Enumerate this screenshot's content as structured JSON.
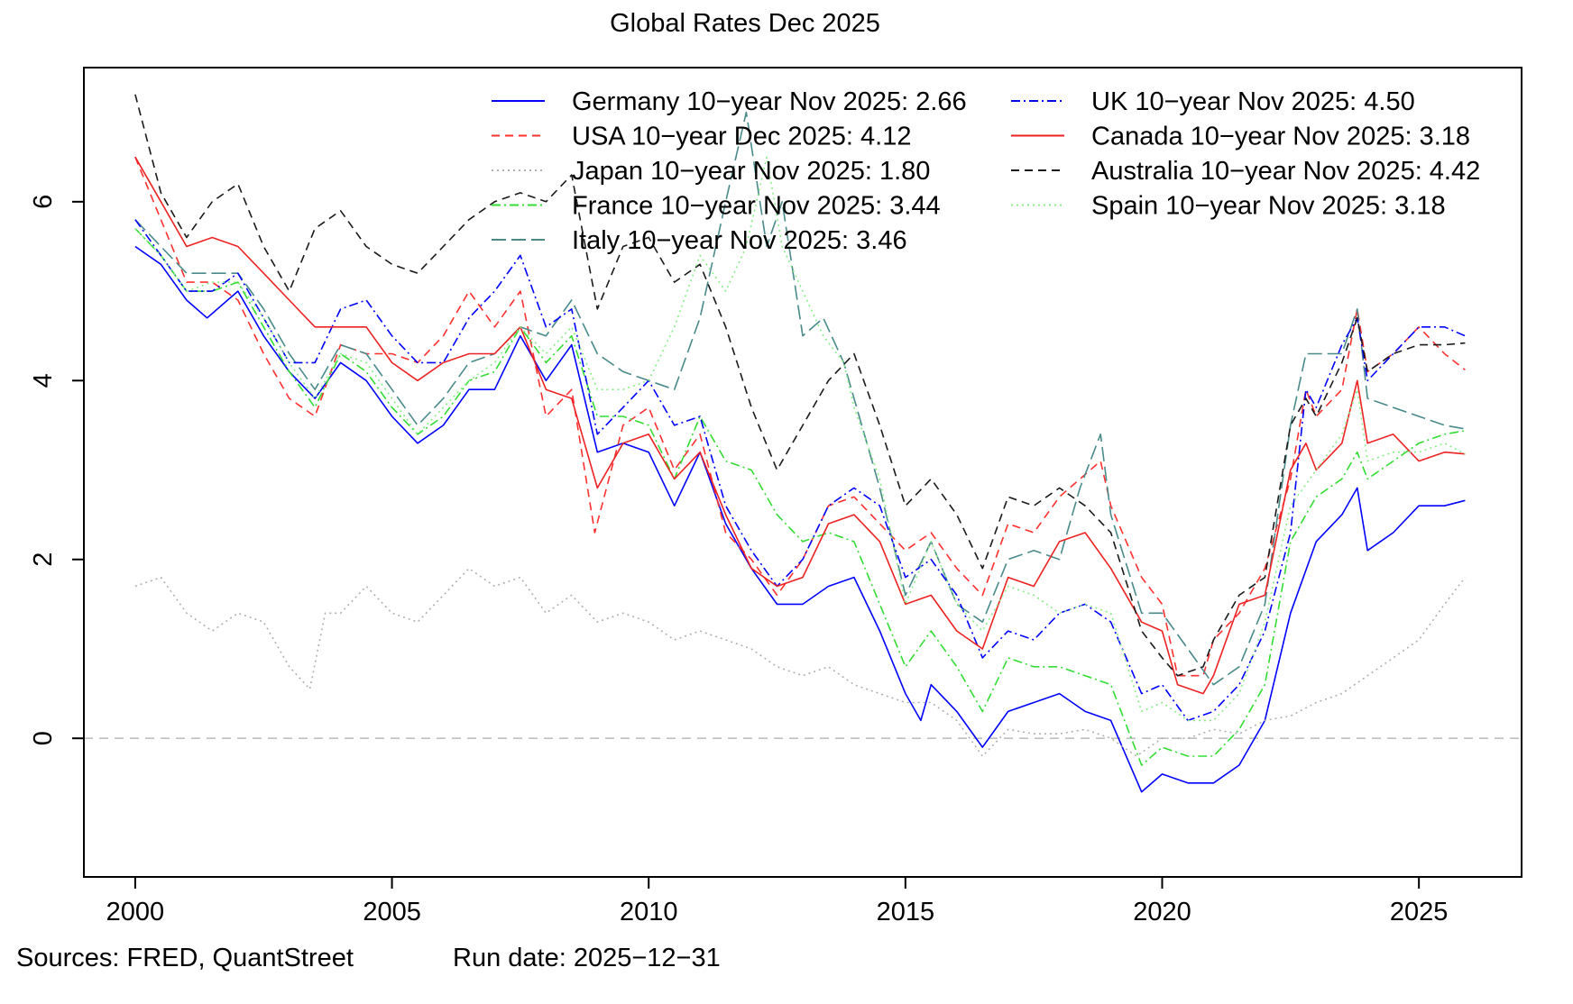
{
  "chart_data": {
    "type": "line",
    "title": "Global Rates Dec 2025",
    "xlabel": "",
    "ylabel": "",
    "xlim": [
      1999.0,
      2027.0
    ],
    "ylim": [
      -1.55,
      7.5
    ],
    "x_ticks": [
      "2000",
      "2005",
      "2010",
      "2015",
      "2020",
      "2025"
    ],
    "y_ticks": [
      "0",
      "2",
      "4",
      "6"
    ],
    "grid": false,
    "reference_line": {
      "y": 0,
      "style": "dashed",
      "color": "#bfbfbf"
    },
    "legend_position": "top-right",
    "series": [
      {
        "name": "Germany 10−year Nov 2025: 2.66",
        "color": "#0000ff",
        "dash": "solid",
        "width": 1.6,
        "x": [
          2000.0,
          2000.5,
          2001.0,
          2001.4,
          2002.0,
          2002.5,
          2003.0,
          2003.5,
          2004.0,
          2004.5,
          2005.0,
          2005.5,
          2006.0,
          2006.5,
          2007.0,
          2007.5,
          2008.0,
          2008.5,
          2009.0,
          2009.5,
          2010.0,
          2010.5,
          2011.0,
          2011.5,
          2012.0,
          2012.5,
          2013.0,
          2013.5,
          2014.0,
          2014.5,
          2015.0,
          2015.3,
          2015.5,
          2016.0,
          2016.5,
          2017.0,
          2017.5,
          2018.0,
          2018.5,
          2019.0,
          2019.6,
          2020.0,
          2020.5,
          2021.0,
          2021.5,
          2022.0,
          2022.5,
          2023.0,
          2023.5,
          2023.8,
          2024.0,
          2024.5,
          2025.0,
          2025.5,
          2025.9
        ],
        "y": [
          5.5,
          5.3,
          4.9,
          4.7,
          5.0,
          4.5,
          4.1,
          3.8,
          4.2,
          4.0,
          3.6,
          3.3,
          3.5,
          3.9,
          3.9,
          4.5,
          4.0,
          4.4,
          3.2,
          3.3,
          3.2,
          2.6,
          3.2,
          2.4,
          1.9,
          1.5,
          1.5,
          1.7,
          1.8,
          1.2,
          0.5,
          0.2,
          0.6,
          0.3,
          -0.1,
          0.3,
          0.4,
          0.5,
          0.3,
          0.2,
          -0.6,
          -0.4,
          -0.5,
          -0.5,
          -0.3,
          0.2,
          1.4,
          2.2,
          2.5,
          2.8,
          2.1,
          2.3,
          2.6,
          2.6,
          2.66
        ]
      },
      {
        "name": "USA 10−year Dec 2025: 4.12",
        "color": "#ff3030",
        "dash": "dashed",
        "width": 1.6,
        "x": [
          2000.0,
          2000.5,
          2001.0,
          2001.5,
          2002.0,
          2002.5,
          2003.0,
          2003.5,
          2004.0,
          2004.5,
          2005.0,
          2005.5,
          2006.0,
          2006.5,
          2007.0,
          2007.5,
          2008.0,
          2008.5,
          2008.95,
          2009.5,
          2010.0,
          2010.5,
          2011.0,
          2011.5,
          2012.0,
          2012.5,
          2013.0,
          2013.5,
          2014.0,
          2014.5,
          2015.0,
          2015.5,
          2016.0,
          2016.5,
          2017.0,
          2017.5,
          2018.0,
          2018.8,
          2019.0,
          2019.6,
          2020.0,
          2020.3,
          2020.8,
          2021.0,
          2021.5,
          2022.0,
          2022.5,
          2022.8,
          2023.0,
          2023.5,
          2023.8,
          2024.0,
          2024.5,
          2025.0,
          2025.5,
          2025.9
        ],
        "y": [
          6.5,
          5.8,
          5.1,
          5.1,
          4.9,
          4.3,
          3.8,
          3.6,
          4.4,
          4.3,
          4.3,
          4.2,
          4.5,
          5.0,
          4.6,
          5.0,
          3.6,
          3.9,
          2.3,
          3.5,
          3.7,
          3.0,
          3.4,
          2.3,
          2.0,
          1.6,
          2.0,
          2.6,
          2.7,
          2.4,
          2.1,
          2.3,
          1.9,
          1.6,
          2.4,
          2.3,
          2.7,
          3.1,
          2.6,
          1.8,
          1.5,
          0.7,
          0.7,
          1.1,
          1.4,
          1.9,
          2.9,
          3.9,
          3.6,
          3.9,
          4.8,
          4.1,
          4.3,
          4.6,
          4.3,
          4.12
        ]
      },
      {
        "name": "Japan 10−year Nov 2025: 1.80",
        "color": "#b0b0b0",
        "dash": "dotted",
        "width": 1.6,
        "x": [
          2000.0,
          2000.5,
          2001.0,
          2001.5,
          2002.0,
          2002.5,
          2003.0,
          2003.4,
          2003.7,
          2004.0,
          2004.5,
          2005.0,
          2005.5,
          2006.0,
          2006.5,
          2007.0,
          2007.5,
          2008.0,
          2008.5,
          2009.0,
          2009.5,
          2010.0,
          2010.5,
          2011.0,
          2011.5,
          2012.0,
          2012.5,
          2013.0,
          2013.5,
          2014.0,
          2014.5,
          2015.0,
          2015.5,
          2016.0,
          2016.5,
          2017.0,
          2017.5,
          2018.0,
          2018.5,
          2019.0,
          2019.5,
          2020.0,
          2020.5,
          2021.0,
          2021.5,
          2022.0,
          2022.5,
          2023.0,
          2023.5,
          2024.0,
          2024.5,
          2025.0,
          2025.5,
          2025.9
        ],
        "y": [
          1.7,
          1.8,
          1.4,
          1.2,
          1.4,
          1.3,
          0.8,
          0.55,
          1.4,
          1.4,
          1.7,
          1.4,
          1.3,
          1.6,
          1.9,
          1.7,
          1.8,
          1.4,
          1.6,
          1.3,
          1.4,
          1.3,
          1.1,
          1.2,
          1.1,
          1.0,
          0.8,
          0.7,
          0.8,
          0.6,
          0.5,
          0.4,
          0.4,
          0.2,
          -0.2,
          0.1,
          0.05,
          0.05,
          0.1,
          0.0,
          -0.2,
          0.0,
          0.0,
          0.1,
          0.05,
          0.2,
          0.25,
          0.4,
          0.5,
          0.7,
          0.9,
          1.1,
          1.5,
          1.8
        ]
      },
      {
        "name": "France 10−year Nov 2025: 3.44",
        "color": "#33dd33",
        "dash": "dashdot",
        "width": 1.6,
        "x": [
          2000.0,
          2000.5,
          2001.0,
          2001.5,
          2002.0,
          2002.5,
          2003.0,
          2003.5,
          2004.0,
          2004.5,
          2005.0,
          2005.5,
          2006.0,
          2006.5,
          2007.0,
          2007.5,
          2008.0,
          2008.5,
          2009.0,
          2009.5,
          2010.0,
          2010.5,
          2011.0,
          2011.5,
          2012.0,
          2012.5,
          2013.0,
          2013.5,
          2014.0,
          2014.5,
          2015.0,
          2015.5,
          2016.0,
          2016.5,
          2017.0,
          2017.5,
          2018.0,
          2018.5,
          2019.0,
          2019.6,
          2020.0,
          2020.5,
          2021.0,
          2021.5,
          2022.0,
          2022.5,
          2023.0,
          2023.5,
          2023.8,
          2024.0,
          2024.5,
          2025.0,
          2025.5,
          2025.9
        ],
        "y": [
          5.7,
          5.4,
          5.0,
          5.0,
          5.1,
          4.6,
          4.1,
          3.7,
          4.3,
          4.1,
          3.7,
          3.4,
          3.6,
          4.0,
          4.1,
          4.6,
          4.2,
          4.5,
          3.6,
          3.6,
          3.5,
          2.9,
          3.6,
          3.1,
          3.0,
          2.5,
          2.2,
          2.3,
          2.2,
          1.5,
          0.8,
          1.2,
          0.8,
          0.3,
          0.9,
          0.8,
          0.8,
          0.7,
          0.6,
          -0.3,
          -0.1,
          -0.2,
          -0.2,
          0.1,
          0.6,
          2.2,
          2.7,
          2.9,
          3.2,
          2.9,
          3.1,
          3.3,
          3.4,
          3.44
        ]
      },
      {
        "name": "Italy 10−year Nov 2025: 3.46",
        "color": "#4a8a8a",
        "dash": "longdash",
        "width": 1.6,
        "x": [
          2000.0,
          2000.5,
          2001.0,
          2001.5,
          2002.0,
          2002.5,
          2003.0,
          2003.5,
          2004.0,
          2004.5,
          2005.0,
          2005.5,
          2006.0,
          2006.5,
          2007.0,
          2007.5,
          2008.0,
          2008.5,
          2009.0,
          2009.5,
          2010.0,
          2010.5,
          2011.0,
          2011.5,
          2011.9,
          2012.3,
          2012.6,
          2013.0,
          2013.4,
          2013.8,
          2014.0,
          2014.5,
          2015.0,
          2015.5,
          2016.0,
          2016.5,
          2017.0,
          2017.5,
          2018.0,
          2018.4,
          2018.8,
          2019.0,
          2019.6,
          2020.0,
          2020.5,
          2021.0,
          2021.5,
          2022.0,
          2022.5,
          2022.8,
          2023.0,
          2023.5,
          2023.8,
          2024.0,
          2024.5,
          2025.0,
          2025.5,
          2025.9
        ],
        "y": [
          5.8,
          5.5,
          5.2,
          5.2,
          5.2,
          4.8,
          4.3,
          3.9,
          4.4,
          4.3,
          3.9,
          3.5,
          3.8,
          4.2,
          4.3,
          4.6,
          4.5,
          4.9,
          4.3,
          4.1,
          4.0,
          3.9,
          4.7,
          6.0,
          7.0,
          5.5,
          6.0,
          4.5,
          4.7,
          4.2,
          3.8,
          2.8,
          1.6,
          2.2,
          1.5,
          1.3,
          2.0,
          2.1,
          2.0,
          2.8,
          3.4,
          2.5,
          1.4,
          1.4,
          1.0,
          0.6,
          0.8,
          1.5,
          3.5,
          4.3,
          4.3,
          4.3,
          4.8,
          3.8,
          3.7,
          3.6,
          3.5,
          3.46
        ]
      },
      {
        "name": "UK 10−year Nov 2025: 4.50",
        "color": "#0000ff",
        "dash": "dashdot",
        "width": 1.6,
        "x": [
          2000.0,
          2000.5,
          2001.0,
          2001.5,
          2002.0,
          2002.5,
          2003.0,
          2003.5,
          2004.0,
          2004.5,
          2005.0,
          2005.5,
          2006.0,
          2006.5,
          2007.0,
          2007.5,
          2008.0,
          2008.5,
          2009.0,
          2009.5,
          2010.0,
          2010.5,
          2011.0,
          2011.5,
          2012.0,
          2012.5,
          2013.0,
          2013.5,
          2014.0,
          2014.5,
          2015.0,
          2015.5,
          2016.0,
          2016.5,
          2017.0,
          2017.5,
          2018.0,
          2018.5,
          2019.0,
          2019.6,
          2020.0,
          2020.5,
          2021.0,
          2021.5,
          2022.0,
          2022.5,
          2022.8,
          2023.0,
          2023.5,
          2023.8,
          2024.0,
          2024.5,
          2025.0,
          2025.5,
          2025.9
        ],
        "y": [
          5.8,
          5.4,
          5.0,
          5.0,
          5.2,
          4.7,
          4.2,
          4.2,
          4.8,
          4.9,
          4.5,
          4.2,
          4.2,
          4.7,
          5.0,
          5.4,
          4.6,
          4.8,
          3.4,
          3.7,
          4.0,
          3.5,
          3.6,
          2.6,
          2.1,
          1.7,
          2.0,
          2.6,
          2.8,
          2.6,
          1.8,
          2.0,
          1.6,
          0.9,
          1.2,
          1.1,
          1.4,
          1.5,
          1.3,
          0.5,
          0.6,
          0.2,
          0.3,
          0.6,
          1.2,
          2.3,
          3.9,
          3.7,
          4.4,
          4.7,
          4.0,
          4.3,
          4.6,
          4.6,
          4.5
        ]
      },
      {
        "name": "Canada 10−year Nov 2025: 3.18",
        "color": "#ee2222",
        "dash": "solid",
        "width": 1.6,
        "x": [
          2000.0,
          2000.5,
          2001.0,
          2001.5,
          2002.0,
          2002.5,
          2003.0,
          2003.5,
          2004.0,
          2004.5,
          2005.0,
          2005.5,
          2006.0,
          2006.5,
          2007.0,
          2007.5,
          2008.0,
          2008.5,
          2009.0,
          2009.5,
          2010.0,
          2010.5,
          2011.0,
          2011.5,
          2012.0,
          2012.5,
          2013.0,
          2013.5,
          2014.0,
          2014.5,
          2015.0,
          2015.5,
          2016.0,
          2016.5,
          2017.0,
          2017.5,
          2018.0,
          2018.5,
          2019.0,
          2019.6,
          2020.0,
          2020.3,
          2020.8,
          2021.0,
          2021.5,
          2022.0,
          2022.5,
          2022.8,
          2023.0,
          2023.5,
          2023.8,
          2024.0,
          2024.5,
          2025.0,
          2025.5,
          2025.9
        ],
        "y": [
          6.5,
          6.0,
          5.5,
          5.6,
          5.5,
          5.2,
          4.9,
          4.6,
          4.6,
          4.6,
          4.2,
          4.0,
          4.2,
          4.3,
          4.3,
          4.6,
          3.9,
          3.8,
          2.8,
          3.3,
          3.4,
          2.9,
          3.2,
          2.5,
          1.9,
          1.7,
          1.8,
          2.4,
          2.5,
          2.2,
          1.5,
          1.6,
          1.2,
          1.0,
          1.8,
          1.7,
          2.2,
          2.3,
          1.9,
          1.3,
          1.2,
          0.6,
          0.5,
          0.7,
          1.5,
          1.6,
          3.0,
          3.3,
          3.0,
          3.3,
          4.0,
          3.3,
          3.4,
          3.1,
          3.2,
          3.18
        ]
      },
      {
        "name": "Australia 10−year Nov 2025: 4.42",
        "color": "#1a1a1a",
        "dash": "dashed",
        "width": 1.6,
        "x": [
          2000.0,
          2000.5,
          2001.0,
          2001.5,
          2002.0,
          2002.5,
          2003.0,
          2003.5,
          2004.0,
          2004.5,
          2005.0,
          2005.5,
          2006.0,
          2006.5,
          2007.0,
          2007.5,
          2008.0,
          2008.5,
          2009.0,
          2009.5,
          2010.0,
          2010.5,
          2011.0,
          2011.5,
          2012.0,
          2012.5,
          2013.0,
          2013.5,
          2014.0,
          2014.5,
          2015.0,
          2015.5,
          2016.0,
          2016.5,
          2017.0,
          2017.5,
          2018.0,
          2018.5,
          2019.0,
          2019.6,
          2020.0,
          2020.3,
          2020.8,
          2021.0,
          2021.5,
          2022.0,
          2022.5,
          2022.8,
          2023.0,
          2023.5,
          2023.8,
          2024.0,
          2024.5,
          2025.0,
          2025.5,
          2025.9
        ],
        "y": [
          7.2,
          6.1,
          5.6,
          6.0,
          6.2,
          5.5,
          5.0,
          5.7,
          5.9,
          5.5,
          5.3,
          5.2,
          5.5,
          5.8,
          6.0,
          6.1,
          6.0,
          6.3,
          4.8,
          5.5,
          5.6,
          5.1,
          5.3,
          4.6,
          3.7,
          3.0,
          3.5,
          4.0,
          4.3,
          3.5,
          2.6,
          2.9,
          2.5,
          1.9,
          2.7,
          2.6,
          2.8,
          2.6,
          2.3,
          1.2,
          0.9,
          0.7,
          0.8,
          1.1,
          1.6,
          1.8,
          3.5,
          3.8,
          3.6,
          4.2,
          4.7,
          4.1,
          4.3,
          4.4,
          4.4,
          4.42
        ]
      },
      {
        "name": "Spain 10−year Nov 2025: 3.18",
        "color": "#88ee88",
        "dash": "dotted",
        "width": 1.6,
        "x": [
          2000.0,
          2000.5,
          2001.0,
          2001.5,
          2002.0,
          2002.5,
          2003.0,
          2003.5,
          2004.0,
          2004.5,
          2005.0,
          2005.5,
          2006.0,
          2006.5,
          2007.0,
          2007.5,
          2008.0,
          2008.5,
          2009.0,
          2009.5,
          2010.0,
          2010.5,
          2011.0,
          2011.5,
          2011.9,
          2012.3,
          2012.6,
          2013.0,
          2013.4,
          2013.8,
          2014.0,
          2014.5,
          2015.0,
          2015.5,
          2016.0,
          2016.5,
          2017.0,
          2017.5,
          2018.0,
          2018.5,
          2019.0,
          2019.6,
          2020.0,
          2020.5,
          2021.0,
          2021.5,
          2022.0,
          2022.5,
          2023.0,
          2023.5,
          2023.8,
          2024.0,
          2024.5,
          2025.0,
          2025.5,
          2025.9
        ],
        "y": [
          5.7,
          5.4,
          5.0,
          5.1,
          5.1,
          4.7,
          4.2,
          3.8,
          4.3,
          4.2,
          3.8,
          3.4,
          3.7,
          4.0,
          4.2,
          4.6,
          4.3,
          4.6,
          3.9,
          3.9,
          4.0,
          4.6,
          5.4,
          5.0,
          5.5,
          6.5,
          5.5,
          5.0,
          4.5,
          4.2,
          3.7,
          2.9,
          1.5,
          2.2,
          1.5,
          1.2,
          1.7,
          1.6,
          1.4,
          1.5,
          1.4,
          0.3,
          0.4,
          0.2,
          0.2,
          0.5,
          1.3,
          2.6,
          3.0,
          3.4,
          3.9,
          3.1,
          3.2,
          3.2,
          3.3,
          3.18
        ]
      }
    ]
  },
  "footer": {
    "sources": "Sources: FRED, QuantStreet",
    "run_date": "Run date: 2025−12−31"
  }
}
